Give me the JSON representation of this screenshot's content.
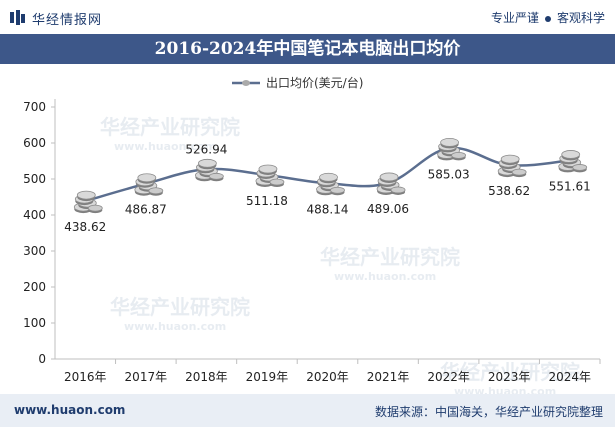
{
  "header": {
    "brand_name": "华经情报网",
    "slogan_left": "专业严谨",
    "slogan_right": "客观科学"
  },
  "title": "2016-2024年中国笔记本电脑出口均价",
  "footer": {
    "url": "www.huaon.com",
    "source": "数据来源：中国海关，华经产业研究院整理"
  },
  "watermark": {
    "text_cn": "华经产业研究院",
    "text_en": "www.huaon.com"
  },
  "colors": {
    "title_band": "#3d5789",
    "line": "#5b6e8f",
    "marker": "#8c8c8c",
    "footer_bg": "#e9eef5",
    "brand": "#1f3c6e"
  },
  "chart_data": {
    "type": "line",
    "categories": [
      "2016年",
      "2017年",
      "2018年",
      "2019年",
      "2020年",
      "2021年",
      "2022年",
      "2023年",
      "2024年"
    ],
    "series": [
      {
        "name": "出口均价(美元/台)",
        "values": [
          438.62,
          486.87,
          526.94,
          511.18,
          488.14,
          489.06,
          585.03,
          538.62,
          551.61
        ]
      }
    ],
    "data_labels": [
      "438.62",
      "486.87",
      "526.94",
      "511.18",
      "488.14",
      "489.06",
      "585.03",
      "538.62",
      "551.61"
    ],
    "y_ticks": [
      "0",
      "100",
      "200",
      "300",
      "400",
      "500",
      "600",
      "700"
    ],
    "ylim": [
      0,
      700
    ],
    "grid": false,
    "legend_position": "top-center",
    "marker": "coin-stack"
  }
}
